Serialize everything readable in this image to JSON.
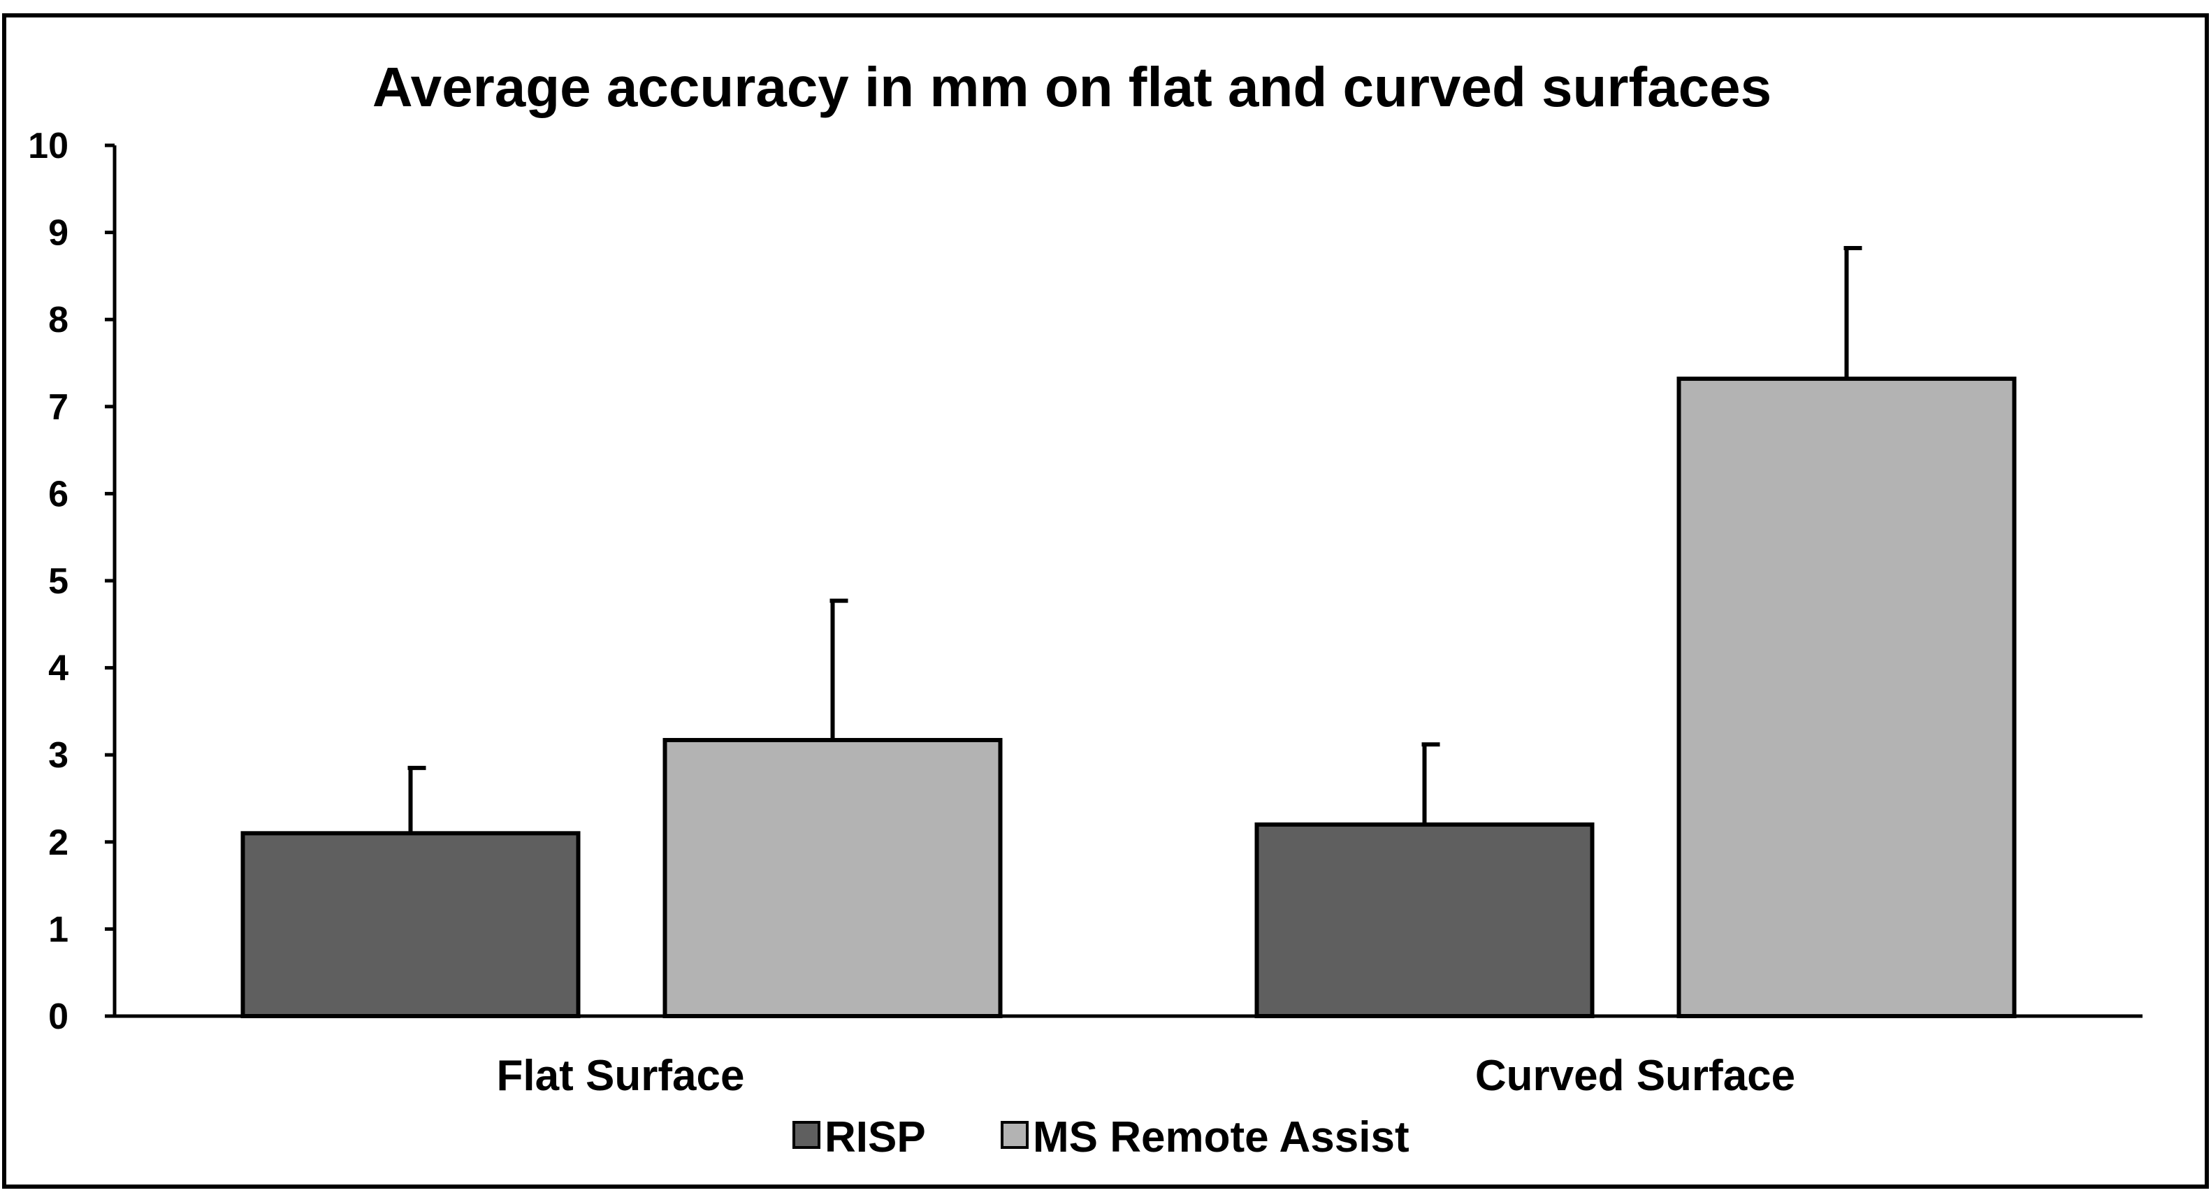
{
  "chart_data": {
    "type": "bar",
    "title": "Average accuracy in mm on flat and curved surfaces",
    "xlabel": "",
    "ylabel": "",
    "ylim": [
      0,
      10
    ],
    "yticks": [
      0,
      1,
      2,
      3,
      4,
      5,
      6,
      7,
      8,
      9,
      10
    ],
    "categories": [
      "Flat Surface",
      "Curved Surface"
    ],
    "series": [
      {
        "name": "RISP",
        "color": "#5f5f5f",
        "values": [
          2.1,
          2.2
        ],
        "error_plus": [
          0.75,
          0.92
        ]
      },
      {
        "name": "MS Remote Assist",
        "color": "#b3b3b3",
        "values": [
          3.17,
          7.32
        ],
        "error_plus": [
          1.6,
          1.5
        ]
      }
    ],
    "grid": false,
    "legend_position": "bottom-center"
  }
}
